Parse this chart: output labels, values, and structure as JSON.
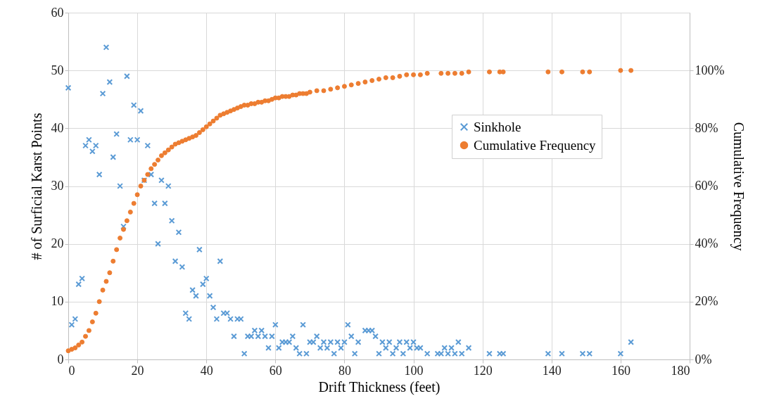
{
  "chart_data": {
    "type": "scatter",
    "xlabel": "Drift Thickness (feet)",
    "ylabel": "# of Surficial Karst Points",
    "y2label": "Cumulative Frequency",
    "xlim": [
      0,
      180
    ],
    "xticks": [
      0,
      20,
      40,
      60,
      80,
      100,
      120,
      140,
      160,
      180
    ],
    "ylim": [
      0,
      60
    ],
    "yticks": [
      0,
      10,
      20,
      30,
      40,
      50,
      60
    ],
    "y2lim": [
      0,
      120
    ],
    "y2ticks": [
      {
        "value": 0,
        "label": "0%"
      },
      {
        "value": 20,
        "label": "20%"
      },
      {
        "value": 40,
        "label": "40%"
      },
      {
        "value": 60,
        "label": "60%"
      },
      {
        "value": 80,
        "label": "80%"
      },
      {
        "value": 100,
        "label": "100%"
      }
    ],
    "grid": true,
    "legend": "right",
    "series": [
      {
        "name": "Sinkhole",
        "color": "#5b9bd5",
        "marker": "cross",
        "x": [
          0,
          1,
          2,
          3,
          4,
          5,
          6,
          7,
          8,
          9,
          10,
          11,
          12,
          13,
          14,
          15,
          16,
          17,
          18,
          19,
          20,
          21,
          22,
          23,
          24,
          25,
          26,
          27,
          28,
          29,
          30,
          31,
          32,
          33,
          34,
          35,
          36,
          37,
          38,
          39,
          40,
          41,
          42,
          43,
          44,
          45,
          46,
          47,
          48,
          49,
          50,
          51,
          52,
          53,
          54,
          55,
          56,
          57,
          58,
          59,
          60,
          61,
          62,
          63,
          64,
          65,
          66,
          67,
          68,
          69,
          70,
          71,
          72,
          73,
          74,
          75,
          76,
          77,
          78,
          79,
          80,
          81,
          82,
          83,
          84,
          86,
          87,
          88,
          89,
          90,
          91,
          92,
          93,
          94,
          95,
          96,
          97,
          98,
          99,
          100,
          101,
          102,
          104,
          107,
          108,
          109,
          110,
          111,
          112,
          113,
          114,
          116,
          122,
          125,
          126,
          139,
          143,
          149,
          151,
          160,
          163
        ],
        "values": [
          47,
          6,
          7,
          13,
          14,
          37,
          38,
          36,
          37,
          32,
          46,
          54,
          48,
          35,
          39,
          30,
          23,
          49,
          38,
          44,
          38,
          43,
          31,
          37,
          32,
          27,
          20,
          31,
          27,
          30,
          24,
          17,
          22,
          16,
          8,
          7,
          12,
          11,
          19,
          13,
          14,
          11,
          9,
          7,
          17,
          8,
          8,
          7,
          4,
          7,
          7,
          1,
          4,
          4,
          5,
          4,
          5,
          4,
          2,
          4,
          6,
          2,
          3,
          3,
          3,
          4,
          2,
          1,
          6,
          1,
          3,
          3,
          4,
          2,
          3,
          2,
          3,
          1,
          3,
          2,
          3,
          6,
          4,
          1,
          3,
          5,
          5,
          5,
          4,
          1,
          3,
          2,
          3,
          1,
          2,
          3,
          1,
          3,
          2,
          3,
          2,
          2,
          1,
          1,
          1,
          2,
          1,
          2,
          1,
          3,
          1,
          2,
          1,
          1,
          1,
          1,
          1,
          1,
          1,
          1,
          3
        ]
      },
      {
        "name": "Cumulative Frequency",
        "color": "#ed7d31",
        "marker": "circle",
        "axis": "y2",
        "x": [
          0,
          1,
          2,
          3,
          4,
          5,
          6,
          7,
          8,
          9,
          10,
          11,
          12,
          13,
          14,
          15,
          16,
          17,
          18,
          19,
          20,
          21,
          22,
          23,
          24,
          25,
          26,
          27,
          28,
          29,
          30,
          31,
          32,
          33,
          34,
          35,
          36,
          37,
          38,
          39,
          40,
          41,
          42,
          43,
          44,
          45,
          46,
          47,
          48,
          49,
          50,
          51,
          52,
          53,
          54,
          55,
          56,
          57,
          58,
          59,
          60,
          61,
          62,
          63,
          64,
          65,
          66,
          67,
          68,
          69,
          70,
          72,
          74,
          76,
          78,
          80,
          82,
          84,
          86,
          88,
          90,
          92,
          94,
          96,
          98,
          100,
          102,
          104,
          108,
          110,
          112,
          114,
          116,
          122,
          125,
          126,
          139,
          143,
          149,
          151,
          160,
          163
        ],
        "values": [
          3,
          3.5,
          4,
          5,
          6,
          8,
          10,
          13,
          16,
          20,
          24,
          27,
          30,
          34,
          38,
          42,
          45,
          48,
          51,
          54,
          57,
          60,
          62,
          64,
          66,
          67.5,
          69,
          70.5,
          71.5,
          72.5,
          73.5,
          74.5,
          75,
          75.5,
          76,
          76.5,
          77,
          77.5,
          78.5,
          79.5,
          80.5,
          81.5,
          82.5,
          83.5,
          84.5,
          85,
          85.5,
          86,
          86.5,
          87,
          87.5,
          88,
          88,
          88.5,
          88.5,
          89,
          89,
          89.5,
          89.5,
          90,
          90.5,
          90.5,
          91,
          91,
          91,
          91.5,
          91.5,
          92,
          92,
          92,
          92.5,
          93,
          93,
          93.5,
          94,
          94.5,
          95,
          95.5,
          96,
          96.5,
          97,
          97.5,
          97.5,
          98,
          98.5,
          98.5,
          98.5,
          99,
          99,
          99,
          99,
          99,
          99.5,
          99.5,
          99.5,
          99.5,
          99.5,
          99.5,
          99.5,
          99.5,
          100,
          100
        ]
      }
    ]
  }
}
